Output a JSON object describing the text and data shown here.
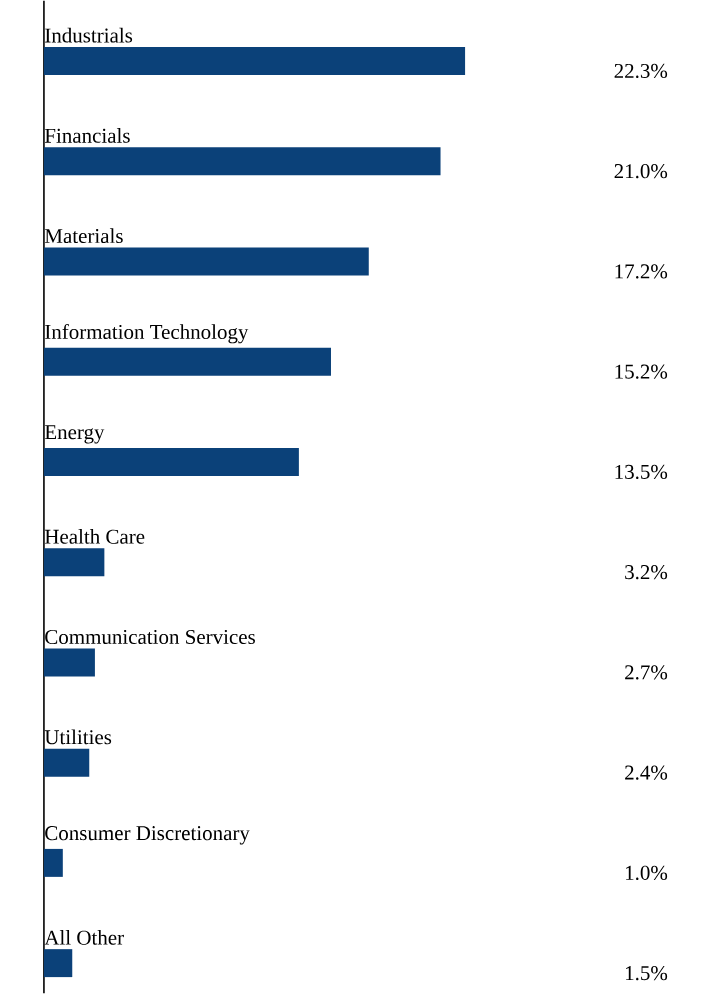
{
  "chart_data": {
    "type": "bar",
    "orientation": "horizontal",
    "data_labels": true,
    "categories": [
      "Industrials",
      "Financials",
      "Materials",
      "Information Technology",
      "Energy",
      "Health Care",
      "Communication Services",
      "Utilities",
      "Consumer Discretionary",
      "All Other"
    ],
    "values": [
      22.3,
      21.0,
      17.2,
      15.2,
      13.5,
      3.2,
      2.7,
      2.4,
      1.0,
      1.5
    ],
    "value_labels": [
      "22.3%",
      "21.0%",
      "17.2%",
      "15.2%",
      "13.5%",
      "3.2%",
      "2.7%",
      "2.4%",
      "1.0%",
      "1.5%"
    ],
    "color": "#0b4179"
  }
}
